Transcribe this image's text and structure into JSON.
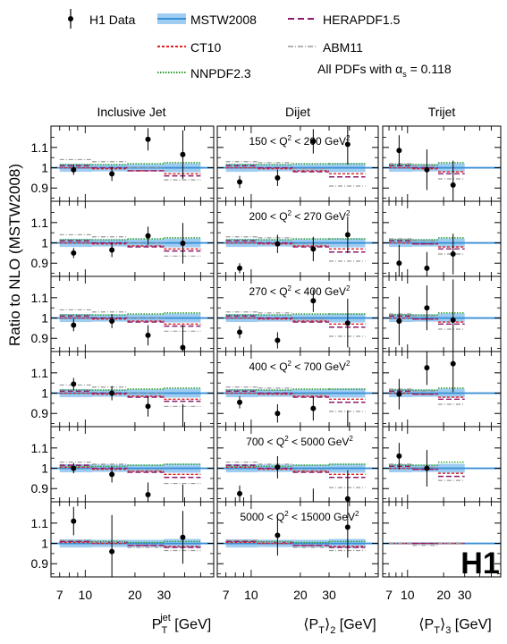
{
  "figure": {
    "ylabel": "Ratio to NLO (MSTW2008)",
    "columns": [
      {
        "title": "Inclusive Jet",
        "xlabel_main": "P",
        "xlabel_sub": "T",
        "xlabel_sup": "jet",
        "xlabel_unit": " [GeV]",
        "xticks": [
          "7",
          "10",
          "20",
          "30"
        ]
      },
      {
        "title": "Dijet",
        "xlabel_main": "⟨P",
        "xlabel_sub": "T",
        "xlabel_close": "⟩",
        "xlabel_sub2": "2",
        "xlabel_unit": " [GeV]",
        "xticks": [
          "7",
          "10",
          "20",
          "30"
        ]
      },
      {
        "title": "Trijet",
        "xlabel_main": "⟨P",
        "xlabel_sub": "T",
        "xlabel_close": "⟩",
        "xlabel_sub2": "3",
        "xlabel_unit": " [GeV]",
        "xticks": [
          "7",
          "10",
          "20",
          "30"
        ]
      }
    ],
    "row_labels": [
      {
        "pre": "150 < Q",
        "sup": "2",
        "post": " < 200 GeV",
        "sup2": "2"
      },
      {
        "pre": "200 < Q",
        "sup": "2",
        "post": " < 270 GeV",
        "sup2": "2"
      },
      {
        "pre": "270 < Q",
        "sup": "2",
        "post": " < 400 GeV",
        "sup2": "2"
      },
      {
        "pre": "400 < Q",
        "sup": "2",
        "post": " < 700 GeV",
        "sup2": "2"
      },
      {
        "pre": "700 < Q",
        "sup": "2",
        "post": " < 5000 GeV",
        "sup2": "2"
      },
      {
        "pre": "5000 < Q",
        "sup": "2",
        "post": " < 15000 GeV",
        "sup2": "2"
      }
    ],
    "ytick_labels": [
      "0.9",
      "1",
      "1.1"
    ],
    "legend": {
      "h1data": "H1 Data",
      "mstw": "MSTW2008",
      "herapdf": "HERAPDF1.5",
      "ct10": "CT10",
      "abm": "ABM11",
      "nnpdf": "NNPDF2.3",
      "alphas_pre": "All PDFs with α",
      "alphas_sub": "s",
      "alphas_post": " = 0.118"
    },
    "logo": "H1",
    "colors": {
      "mstw_line": "#3a8fd6",
      "mstw_band": "#9fcdf2",
      "herapdf": "#8b1a6b",
      "ct10": "#e02020",
      "nnpdf": "#2e9e2e",
      "abm": "#999999",
      "data": "#000000"
    }
  },
  "chart_data": {
    "type": "scatter",
    "layout": "6 rows (Q² bins) × 3 columns (Inclusive Jet, Dijet, Trijet)",
    "x_scale": "log",
    "xlim": [
      6.2,
      60
    ],
    "ylim": [
      0.835,
      1.205
    ],
    "yticks": [
      0.9,
      1.0,
      1.1
    ],
    "bin_edges": [
      7,
      11,
      18,
      30,
      50
    ],
    "bin_edges_trijet": [
      7,
      11,
      18,
      30
    ],
    "panels": [
      {
        "row": 0,
        "col": 0,
        "h1": [
          [
            8.5,
            0.99,
            0.025
          ],
          [
            14.5,
            0.97,
            0.035
          ],
          [
            24,
            1.14,
            0.055
          ],
          [
            39,
            1.065,
            0.12
          ]
        ],
        "mstw_err": [
          0.02,
          0.018,
          0.018,
          0.022
        ],
        "herapdf": [
          1.01,
          1.0,
          0.985,
          0.96
        ],
        "ct10": [
          1.0,
          0.995,
          0.985,
          0.97
        ],
        "nnpdf": [
          1.015,
          1.015,
          1.02,
          1.025
        ],
        "abm": [
          1.04,
          1.03,
          1.0,
          0.94
        ]
      },
      {
        "row": 0,
        "col": 1,
        "h1": [
          [
            8.5,
            0.93,
            0.03
          ],
          [
            14.5,
            0.95,
            0.04
          ],
          [
            24,
            1.13,
            0.06
          ],
          [
            39,
            1.115,
            0.1
          ]
        ],
        "mstw_err": [
          0.02,
          0.018,
          0.018,
          0.022
        ],
        "herapdf": [
          1.01,
          1.0,
          0.98,
          0.955
        ],
        "ct10": [
          1.0,
          0.995,
          0.985,
          0.97
        ],
        "nnpdf": [
          1.015,
          1.015,
          1.02,
          1.02
        ],
        "abm": [
          1.03,
          1.025,
          0.995,
          0.91
        ]
      },
      {
        "row": 0,
        "col": 2,
        "h1": [
          [
            8.5,
            1.085,
            0.075
          ],
          [
            14.5,
            0.99,
            0.1
          ],
          [
            24,
            0.915,
            0.12
          ]
        ],
        "mstw_err": [
          0.02,
          0.018,
          0.022
        ],
        "herapdf": [
          1.01,
          1.0,
          0.97
        ],
        "ct10": [
          1.0,
          0.995,
          0.98
        ],
        "nnpdf": [
          1.015,
          1.015,
          1.025
        ],
        "abm": [
          1.02,
          1.01,
          0.945
        ]
      },
      {
        "row": 1,
        "col": 0,
        "h1": [
          [
            8.5,
            0.95,
            0.025
          ],
          [
            14.5,
            0.965,
            0.035
          ],
          [
            24,
            1.035,
            0.045
          ],
          [
            39,
            0.998,
            0.1
          ]
        ],
        "mstw_err": [
          0.02,
          0.018,
          0.018,
          0.022
        ],
        "herapdf": [
          1.01,
          1.0,
          0.98,
          0.96
        ],
        "ct10": [
          1.0,
          0.995,
          0.985,
          0.97
        ],
        "nnpdf": [
          1.015,
          1.015,
          1.02,
          1.025
        ],
        "abm": [
          1.04,
          1.03,
          1.0,
          0.935
        ]
      },
      {
        "row": 1,
        "col": 1,
        "h1": [
          [
            8.5,
            0.875,
            0.025
          ],
          [
            14.5,
            0.995,
            0.045
          ],
          [
            24,
            0.97,
            0.06
          ],
          [
            39,
            1.04,
            0.09
          ]
        ],
        "mstw_err": [
          0.02,
          0.018,
          0.018,
          0.022
        ],
        "herapdf": [
          1.01,
          1.0,
          0.98,
          0.955
        ],
        "ct10": [
          1.0,
          0.995,
          0.985,
          0.97
        ],
        "nnpdf": [
          1.015,
          1.015,
          1.02,
          1.02
        ],
        "abm": [
          1.03,
          1.025,
          0.995,
          0.91
        ]
      },
      {
        "row": 1,
        "col": 2,
        "h1": [
          [
            8.5,
            0.9,
            0.09
          ],
          [
            14.5,
            0.875,
            0.08
          ],
          [
            24,
            0.945,
            0.1
          ]
        ],
        "mstw_err": [
          0.02,
          0.018,
          0.022
        ],
        "herapdf": [
          1.01,
          0.995,
          0.97
        ],
        "ct10": [
          1.0,
          0.995,
          0.98
        ],
        "nnpdf": [
          1.015,
          1.015,
          1.025
        ],
        "abm": [
          1.02,
          1.01,
          0.945
        ]
      },
      {
        "row": 2,
        "col": 0,
        "h1": [
          [
            8.5,
            0.965,
            0.03
          ],
          [
            14.5,
            0.985,
            0.035
          ],
          [
            24,
            0.915,
            0.05
          ],
          [
            39,
            0.855,
            0.11
          ]
        ],
        "mstw_err": [
          0.02,
          0.018,
          0.018,
          0.022
        ],
        "herapdf": [
          1.01,
          1.0,
          0.98,
          0.96
        ],
        "ct10": [
          1.0,
          0.995,
          0.985,
          0.97
        ],
        "nnpdf": [
          1.015,
          1.015,
          1.02,
          1.025
        ],
        "abm": [
          1.04,
          1.03,
          1.0,
          0.935
        ]
      },
      {
        "row": 2,
        "col": 1,
        "h1": [
          [
            8.5,
            0.93,
            0.03
          ],
          [
            14.5,
            0.89,
            0.04
          ],
          [
            24,
            1.085,
            0.055
          ],
          [
            39,
            0.975,
            0.12
          ]
        ],
        "mstw_err": [
          0.02,
          0.018,
          0.018,
          0.022
        ],
        "herapdf": [
          1.01,
          1.0,
          0.98,
          0.955
        ],
        "ct10": [
          1.0,
          0.995,
          0.985,
          0.97
        ],
        "nnpdf": [
          1.015,
          1.015,
          1.02,
          1.02
        ],
        "abm": [
          1.03,
          1.025,
          0.995,
          0.91
        ]
      },
      {
        "row": 2,
        "col": 2,
        "h1": [
          [
            8.5,
            0.985,
            0.12
          ],
          [
            14.5,
            1.05,
            0.11
          ],
          [
            24,
            0.99,
            0.2
          ]
        ],
        "mstw_err": [
          0.02,
          0.018,
          0.022
        ],
        "herapdf": [
          1.01,
          0.995,
          0.97
        ],
        "ct10": [
          1.0,
          0.995,
          0.98
        ],
        "nnpdf": [
          1.015,
          1.015,
          1.025
        ],
        "abm": [
          1.02,
          1.01,
          0.945
        ]
      },
      {
        "row": 3,
        "col": 0,
        "h1": [
          [
            8.5,
            1.045,
            0.03
          ],
          [
            14.5,
            1.0,
            0.035
          ],
          [
            24,
            0.935,
            0.05
          ],
          [
            39,
            0.815,
            0.13
          ]
        ],
        "mstw_err": [
          0.02,
          0.018,
          0.018,
          0.022
        ],
        "herapdf": [
          1.01,
          1.0,
          0.98,
          0.96
        ],
        "ct10": [
          1.0,
          0.995,
          0.985,
          0.97
        ],
        "nnpdf": [
          1.015,
          1.015,
          1.02,
          1.025
        ],
        "abm": [
          1.04,
          1.03,
          1.0,
          0.935
        ]
      },
      {
        "row": 3,
        "col": 1,
        "h1": [
          [
            8.5,
            0.955,
            0.03
          ],
          [
            14.5,
            0.9,
            0.045
          ],
          [
            24,
            0.925,
            0.06
          ],
          [
            39,
            0.785,
            0.13
          ]
        ],
        "mstw_err": [
          0.02,
          0.018,
          0.018,
          0.022
        ],
        "herapdf": [
          1.01,
          1.0,
          0.98,
          0.955
        ],
        "ct10": [
          1.0,
          0.995,
          0.985,
          0.97
        ],
        "nnpdf": [
          1.015,
          1.015,
          1.02,
          1.02
        ],
        "abm": [
          1.03,
          1.025,
          0.995,
          0.91
        ]
      },
      {
        "row": 3,
        "col": 2,
        "h1": [
          [
            8.5,
            0.995,
            0.075
          ],
          [
            14.5,
            1.125,
            0.085
          ],
          [
            24,
            1.145,
            0.14
          ]
        ],
        "mstw_err": [
          0.02,
          0.018,
          0.022
        ],
        "herapdf": [
          1.01,
          0.995,
          0.97
        ],
        "ct10": [
          1.0,
          0.995,
          0.98
        ],
        "nnpdf": [
          1.015,
          1.015,
          1.025
        ],
        "abm": [
          1.02,
          1.01,
          0.945
        ]
      },
      {
        "row": 4,
        "col": 0,
        "h1": [
          [
            8.5,
            1.0,
            0.025
          ],
          [
            14.5,
            0.97,
            0.04
          ],
          [
            24,
            0.87,
            0.06
          ],
          [
            39,
            0.77,
            0.15
          ]
        ],
        "mstw_err": [
          0.02,
          0.018,
          0.018,
          0.022
        ],
        "herapdf": [
          1.015,
          1.0,
          0.98,
          0.955
        ],
        "ct10": [
          1.005,
          0.995,
          0.985,
          0.97
        ],
        "nnpdf": [
          1.01,
          1.01,
          1.015,
          1.02
        ],
        "abm": [
          1.03,
          1.02,
          0.99,
          0.925
        ]
      },
      {
        "row": 4,
        "col": 1,
        "h1": [
          [
            8.5,
            0.875,
            0.04
          ],
          [
            14.5,
            1.005,
            0.055
          ],
          [
            24,
            0.82,
            0.08
          ],
          [
            39,
            0.85,
            0.14
          ]
        ],
        "mstw_err": [
          0.02,
          0.018,
          0.018,
          0.022
        ],
        "herapdf": [
          1.015,
          1.0,
          0.98,
          0.955
        ],
        "ct10": [
          1.005,
          0.995,
          0.985,
          0.97
        ],
        "nnpdf": [
          1.01,
          1.01,
          1.015,
          1.02
        ],
        "abm": [
          1.03,
          1.02,
          0.99,
          0.905
        ]
      },
      {
        "row": 4,
        "col": 2,
        "h1": [
          [
            8.5,
            1.06,
            0.065
          ],
          [
            14.5,
            1.0,
            0.09
          ]
        ],
        "mstw_err": [
          0.02,
          0.018,
          0.022
        ],
        "herapdf": [
          1.01,
          0.995,
          0.96
        ],
        "ct10": [
          1.0,
          0.995,
          0.975
        ],
        "nnpdf": [
          1.015,
          1.015,
          1.03
        ],
        "abm": [
          1.02,
          1.005,
          0.94
        ]
      },
      {
        "row": 5,
        "col": 0,
        "h1": [
          [
            8.5,
            1.11,
            0.07
          ],
          [
            14.5,
            0.96,
            0.18
          ],
          [
            39,
            1.03,
            0.13
          ]
        ],
        "mstw_err": [
          0.02,
          0.018,
          0.018,
          0.022
        ],
        "herapdf": [
          1.01,
          1.005,
          0.99,
          0.98
        ],
        "ct10": [
          1.005,
          1.0,
          0.99,
          0.985
        ],
        "nnpdf": [
          1.01,
          1.01,
          1.005,
          1.01
        ],
        "abm": [
          1.015,
          1.005,
          0.98,
          0.965
        ]
      },
      {
        "row": 5,
        "col": 1,
        "h1": [
          [
            14.5,
            1.04,
            0.1
          ],
          [
            39,
            1.08,
            0.15
          ]
        ],
        "mstw_err": [
          0.02,
          0.018,
          0.018,
          0.022
        ],
        "herapdf": [
          1.01,
          1.005,
          0.99,
          0.98
        ],
        "ct10": [
          1.005,
          1.0,
          0.99,
          0.985
        ],
        "nnpdf": [
          1.01,
          1.01,
          1.005,
          1.01
        ],
        "abm": [
          1.015,
          1.005,
          0.98,
          0.965
        ]
      },
      {
        "row": 5,
        "col": 2,
        "h1": [],
        "mstw_err": [
          0.0,
          0.005,
          0.0
        ],
        "herapdf": [
          1.0,
          1.0,
          1.0
        ],
        "ct10": [
          1.0,
          1.0,
          1.0
        ],
        "nnpdf": [
          1.0,
          1.0,
          1.0
        ],
        "abm": [
          1.0,
          0.99,
          1.0
        ]
      }
    ]
  }
}
